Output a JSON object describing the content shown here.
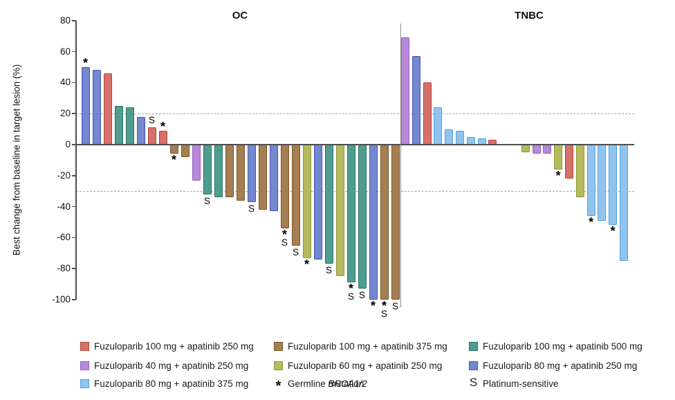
{
  "chart_data": {
    "type": "bar",
    "subtype": "waterfall",
    "title": "",
    "xlabel": "",
    "ylabel": "Best change from baseline in target lesion (%)",
    "ylim": [
      -100,
      80
    ],
    "yticks": [
      80,
      60,
      40,
      20,
      0,
      -20,
      -40,
      -60,
      -80,
      -100
    ],
    "reference_lines": [
      20,
      -30
    ],
    "grid": false,
    "legend_position": "bottom",
    "symbols": {
      "asterisk": "Germline BRCA1/2 mutation",
      "S": "Platinum-sensitive"
    },
    "colors": {
      "red": {
        "fill": "#D4716A",
        "border": "#BA4238"
      },
      "brown": {
        "fill": "#A67E53",
        "border": "#7A5426"
      },
      "teal": {
        "fill": "#4F9D90",
        "border": "#2B7265"
      },
      "purple": {
        "fill": "#B789D6",
        "border": "#9A5EC8"
      },
      "yellowgreen": {
        "fill": "#B5BA5E",
        "border": "#8F9833"
      },
      "slateblue": {
        "fill": "#7487D0",
        "border": "#4257B4"
      },
      "lightblue": {
        "fill": "#90C4EE",
        "border": "#54A0E4"
      }
    },
    "panels": [
      {
        "title": "OC",
        "bars": [
          {
            "v": 50,
            "c": "slateblue",
            "ann": [
              "*"
            ]
          },
          {
            "v": 48,
            "c": "slateblue"
          },
          {
            "v": 46,
            "c": "red"
          },
          {
            "v": 25,
            "c": "teal"
          },
          {
            "v": 24,
            "c": "teal"
          },
          {
            "v": 18,
            "c": "slateblue"
          },
          {
            "v": 11,
            "c": "red",
            "ann": [
              "S"
            ]
          },
          {
            "v": 9,
            "c": "red",
            "ann": [
              "*"
            ]
          },
          {
            "v": -6,
            "c": "brown",
            "ann": [
              "*"
            ]
          },
          {
            "v": -8,
            "c": "brown"
          },
          {
            "v": -23,
            "c": "purple"
          },
          {
            "v": -32,
            "c": "teal",
            "ann": [
              "S"
            ]
          },
          {
            "v": -34,
            "c": "teal"
          },
          {
            "v": -34,
            "c": "brown"
          },
          {
            "v": -36,
            "c": "brown"
          },
          {
            "v": -37,
            "c": "slateblue",
            "ann": [
              "S"
            ]
          },
          {
            "v": -42,
            "c": "brown"
          },
          {
            "v": -43,
            "c": "slateblue"
          },
          {
            "v": -54,
            "c": "brown",
            "ann": [
              "*",
              "S"
            ]
          },
          {
            "v": -65,
            "c": "brown",
            "ann": [
              "S"
            ]
          },
          {
            "v": -73,
            "c": "yellowgreen",
            "ann": [
              "*"
            ]
          },
          {
            "v": -74,
            "c": "slateblue"
          },
          {
            "v": -77,
            "c": "teal",
            "ann": [
              "S"
            ]
          },
          {
            "v": -85,
            "c": "yellowgreen"
          },
          {
            "v": -89,
            "c": "teal",
            "ann": [
              "*",
              "S"
            ]
          },
          {
            "v": -93,
            "c": "teal",
            "ann": [
              "S"
            ]
          },
          {
            "v": -100,
            "c": "slateblue",
            "ann": [
              "*"
            ]
          },
          {
            "v": -100,
            "c": "brown",
            "ann": [
              "*",
              "S"
            ]
          },
          {
            "v": -100,
            "c": "brown",
            "ann": [
              "S"
            ]
          }
        ]
      },
      {
        "title": "TNBC",
        "bars": [
          {
            "v": 69,
            "c": "purple"
          },
          {
            "v": 57,
            "c": "slateblue"
          },
          {
            "v": 40,
            "c": "red"
          },
          {
            "v": 24,
            "c": "lightblue"
          },
          {
            "v": 10,
            "c": "lightblue"
          },
          {
            "v": 9,
            "c": "lightblue"
          },
          {
            "v": 5,
            "c": "lightblue"
          },
          {
            "v": 4,
            "c": "lightblue"
          },
          {
            "v": 3,
            "c": "red"
          },
          {
            "v": 0,
            "c": null
          },
          {
            "v": 0,
            "c": null
          },
          {
            "v": -5,
            "c": "yellowgreen"
          },
          {
            "v": -6,
            "c": "purple"
          },
          {
            "v": -6,
            "c": "purple"
          },
          {
            "v": -16,
            "c": "yellowgreen",
            "ann": [
              "*"
            ]
          },
          {
            "v": -22,
            "c": "red"
          },
          {
            "v": -34,
            "c": "yellowgreen"
          },
          {
            "v": -46,
            "c": "lightblue",
            "ann": [
              "*"
            ]
          },
          {
            "v": -49,
            "c": "lightblue"
          },
          {
            "v": -52,
            "c": "lightblue",
            "ann": [
              "*"
            ]
          },
          {
            "v": -75,
            "c": "lightblue"
          }
        ]
      }
    ]
  },
  "legend": {
    "columns": [
      {
        "items": [
          {
            "swatch": "red",
            "label": "Fuzuloparib 100 mg + apatinib 250 mg"
          },
          {
            "swatch": "purple",
            "label": "Fuzuloparib 40 mg + apatinib 250 mg"
          },
          {
            "swatch": "lightblue",
            "label": "Fuzuloparib 80 mg + apatinib 375 mg"
          }
        ]
      },
      {
        "items": [
          {
            "swatch": "brown",
            "label": "Fuzuloparib 100 mg + apatinib 375 mg"
          },
          {
            "swatch": "yellowgreen",
            "label": "Fuzuloparib 60 mg + apatinib 250 mg"
          },
          {
            "symbol": "*",
            "label": "Germline BRCA1/2 mutation",
            "label_parts": [
              {
                "t": "Germline "
              },
              {
                "t": "BRCA1/2",
                "i": true
              },
              {
                "t": " mutation"
              }
            ]
          }
        ]
      },
      {
        "items": [
          {
            "swatch": "teal",
            "label": "Fuzuloparib 100 mg + apatinib 500 mg"
          },
          {
            "swatch": "slateblue",
            "label": "Fuzuloparib 80 mg + apatinib 250 mg"
          },
          {
            "symbol": "S",
            "label": "Platinum-sensitive"
          }
        ]
      }
    ]
  }
}
